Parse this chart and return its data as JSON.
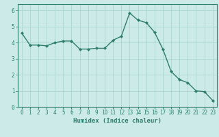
{
  "x": [
    0,
    1,
    2,
    3,
    4,
    5,
    6,
    7,
    8,
    9,
    10,
    11,
    12,
    13,
    14,
    15,
    16,
    17,
    18,
    19,
    20,
    21,
    22,
    23
  ],
  "y": [
    4.6,
    3.85,
    3.85,
    3.8,
    4.0,
    4.1,
    4.1,
    3.6,
    3.6,
    3.65,
    3.65,
    4.15,
    4.4,
    5.85,
    5.4,
    5.25,
    4.65,
    3.6,
    2.2,
    1.7,
    1.5,
    1.0,
    0.95,
    0.4
  ],
  "line_color": "#2e7d6e",
  "marker": "D",
  "marker_size": 2.2,
  "bg_color": "#cceae7",
  "grid_color": "#aad4d0",
  "xlabel": "Humidex (Indice chaleur)",
  "xlim": [
    -0.5,
    23.5
  ],
  "ylim": [
    0,
    6.4
  ],
  "yticks": [
    0,
    1,
    2,
    3,
    4,
    5,
    6
  ],
  "xticks": [
    0,
    1,
    2,
    3,
    4,
    5,
    6,
    7,
    8,
    9,
    10,
    11,
    12,
    13,
    14,
    15,
    16,
    17,
    18,
    19,
    20,
    21,
    22,
    23
  ],
  "tick_label_size": 5.5,
  "xlabel_size": 6.5,
  "line_width": 1.0,
  "text_color": "#2e7d6e",
  "spine_color": "#2e7d6e"
}
